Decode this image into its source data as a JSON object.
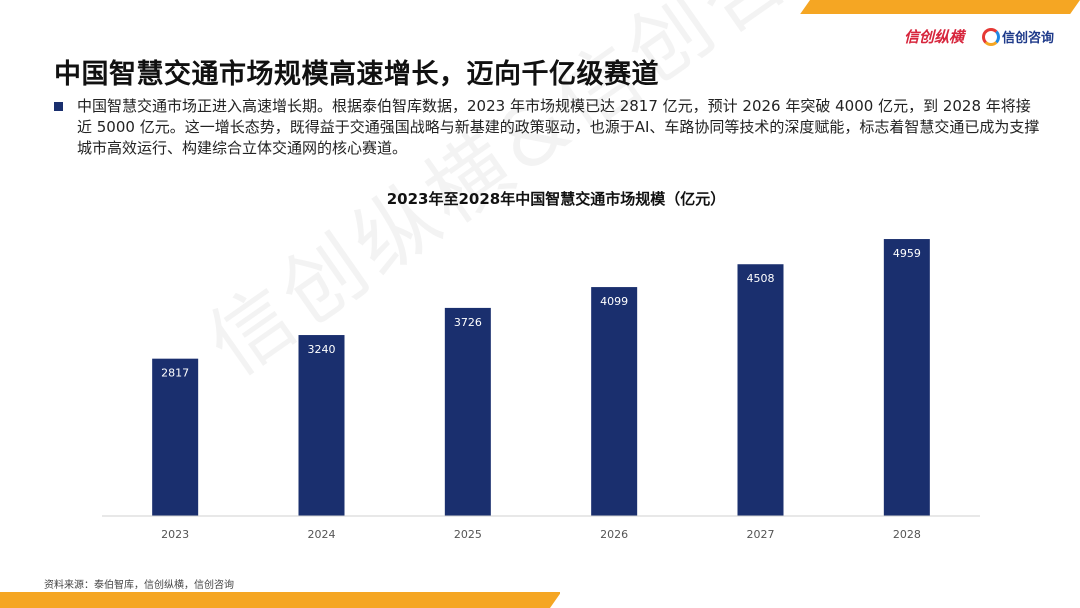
{
  "slide": {
    "title": "中国智慧交通市场规模高速增长，迈向千亿级赛道",
    "bullet": "中国智慧交通市场正进入高速增长期。根据泰伯智库数据，2023 年市场规模已达 2817 亿元，预计 2026 年突破 4000 亿元，到 2028 年将接近 5000 亿元。这一增长态势，既得益于交通强国战略与新基建的政策驱动，也源于AI、车路协同等技术的深度赋能，标志着智慧交通已成为支撑城市高效运行、构建综合立体交通网的核心赛道。",
    "source": "资料来源：泰伯智库，信创纵横，信创咨询",
    "watermark": "信创纵横&信创咨询"
  },
  "logos": {
    "left": "信创纵横",
    "right": "信创咨询"
  },
  "colors": {
    "accent": "#f5a623",
    "bar": "#1a2f6e",
    "bullet_icon": "#1a2f6e"
  },
  "chart_data": {
    "type": "bar",
    "title": "2023年至2028年中国智慧交通市场规模（亿元）",
    "categories": [
      "2023",
      "2024",
      "2025",
      "2026",
      "2027",
      "2028"
    ],
    "values": [
      2817,
      3240,
      3726,
      4099,
      4508,
      4959
    ],
    "ylim": [
      0,
      5300
    ],
    "grid": false,
    "data_labels": true
  }
}
